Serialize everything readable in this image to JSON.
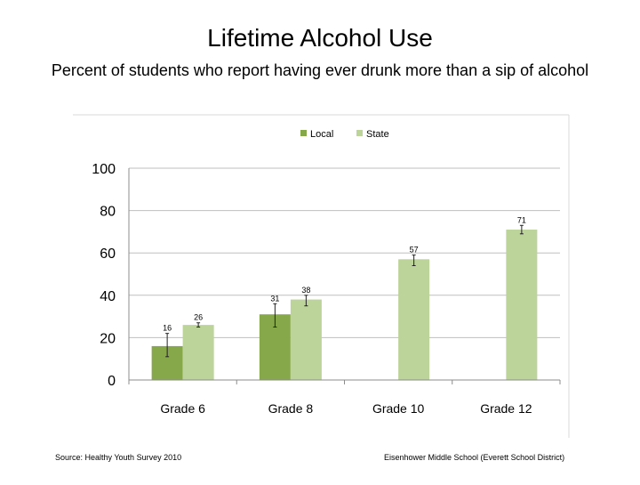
{
  "header": {
    "title": "Lifetime Alcohol Use",
    "subtitle": "Percent of students who report having ever drunk more than a sip of alcohol"
  },
  "footer": {
    "source": "Source: Healthy Youth Survey 2010",
    "school": "Eisenhower Middle School (Everett School District)"
  },
  "colors": {
    "local": "#86a84a",
    "state": "#bcd49a",
    "error_bar": "#222222",
    "gridline": "#bfbfbf",
    "axis": "#8c8c8c"
  },
  "chart_data": {
    "type": "bar",
    "categories": [
      "Grade 6",
      "Grade 8",
      "Grade 10",
      "Grade 12"
    ],
    "series": [
      {
        "name": "Local",
        "values": [
          16,
          31,
          null,
          null
        ],
        "labels": [
          "16",
          "31",
          "",
          ""
        ],
        "error": [
          [
            11,
            22
          ],
          [
            25,
            36
          ],
          null,
          null
        ]
      },
      {
        "name": "State",
        "values": [
          26,
          38,
          57,
          71
        ],
        "labels": [
          "26",
          "38",
          "57",
          "71"
        ],
        "error": [
          [
            25,
            27
          ],
          [
            35,
            40
          ],
          [
            54,
            59
          ],
          [
            69,
            73
          ]
        ]
      }
    ],
    "title": "Lifetime Alcohol Use",
    "xlabel": "",
    "ylabel": "",
    "ylim": [
      0,
      100
    ],
    "yticks": [
      0,
      20,
      40,
      60,
      80,
      100
    ],
    "grid": true,
    "legend": "top-center"
  }
}
